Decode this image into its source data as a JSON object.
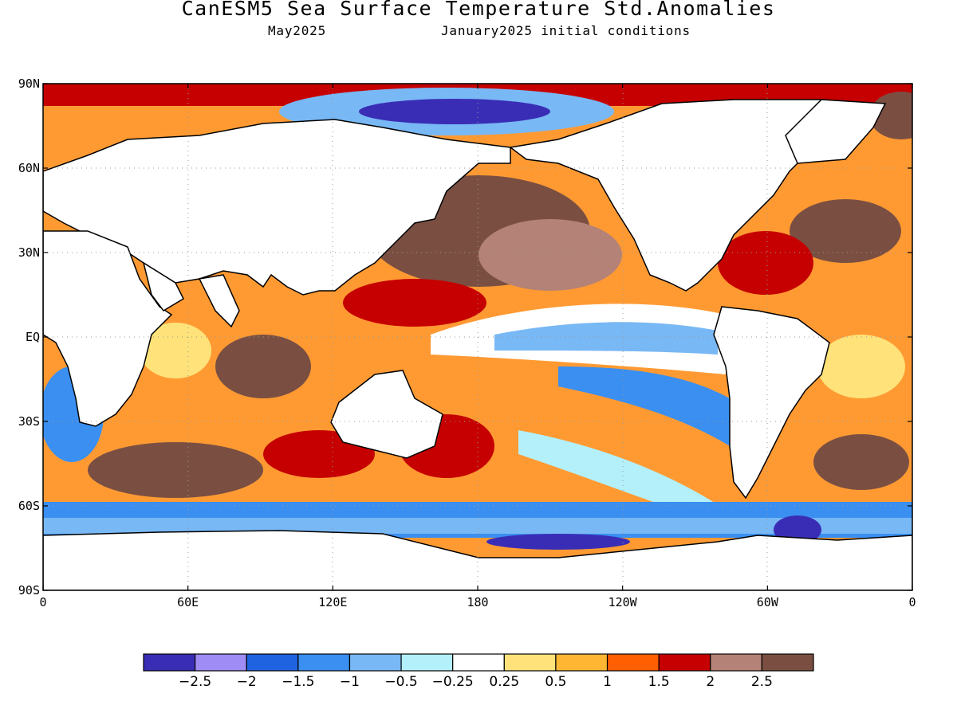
{
  "title": "CanESM5 Sea Surface Temperature Std.Anomalies",
  "subtitle_left": "May2025",
  "subtitle_right": "January2025 initial conditions",
  "lat_labels": [
    "90N",
    "60N",
    "30N",
    "EQ",
    "30S",
    "60S",
    "90S"
  ],
  "lon_labels": [
    "0",
    "60E",
    "120E",
    "180",
    "120W",
    "60W",
    "0"
  ],
  "colorbar": {
    "colors": [
      "#3a2db5",
      "#9f8cf5",
      "#1f63e0",
      "#3a8ff0",
      "#78b8f5",
      "#b3f0fa",
      "#ffffff",
      "#ffe37a",
      "#ffb733",
      "#ff5f00",
      "#c60000",
      "#b48276",
      "#7a4f42"
    ],
    "labels": [
      "−2.5",
      "−2",
      "−1.5",
      "−1",
      "−0.5",
      "−0.25",
      "0.25",
      "0.5",
      "1",
      "1.5",
      "2",
      "2.5"
    ]
  }
}
